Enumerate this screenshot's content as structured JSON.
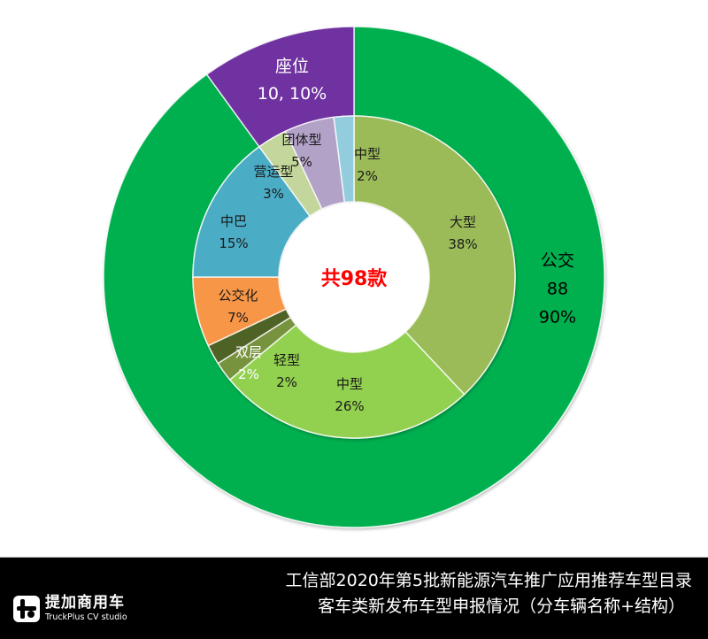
{
  "chart_data": {
    "type": "pie",
    "subtype": "nested-donut",
    "title": "工信部2020年第5批新能源汽车推广应用推荐车型目录 客车类新发布车型申报情况（分车辆名称+结构）",
    "center_label": "共98款",
    "total": 98,
    "outer_ring": {
      "name": "车辆名称",
      "categories": [
        "公交",
        "座位"
      ],
      "counts": [
        88,
        10
      ],
      "percents": [
        90,
        10
      ],
      "colors": [
        "#00B050",
        "#7030A0"
      ],
      "labels": [
        "公交\n88\n90%",
        "座位\n10, 10%"
      ]
    },
    "inner_ring": {
      "name": "结构",
      "categories": [
        "大型",
        "中型",
        "轻型",
        "双层",
        "公交化",
        "中巴",
        "营运型",
        "团体型",
        "中型"
      ],
      "percents": [
        38,
        26,
        2,
        2,
        7,
        15,
        3,
        5,
        2
      ],
      "colors": [
        "#9BBB59",
        "#92D050",
        "#77933C",
        "#4F6228",
        "#F79646",
        "#4BACC6",
        "#C3D69B",
        "#B3A2C7",
        "#93CDDD"
      ],
      "parent": [
        "公交",
        "公交",
        "公交",
        "公交",
        "公交",
        "公交",
        "座位",
        "座位",
        "座位"
      ]
    },
    "start_angle": "12 o'clock, clockwise",
    "legend": "none (data labels on slices)"
  },
  "labels": {
    "gongjiao": {
      "name": "公交",
      "count": "88",
      "pct": "90%"
    },
    "zuowei": {
      "name": "座位",
      "value": "10, 10%"
    },
    "daxing": {
      "name": "大型",
      "pct": "38%"
    },
    "zhongxing": {
      "name": "中型",
      "pct": "26%"
    },
    "qingxing": {
      "name": "轻型",
      "pct": "2%"
    },
    "shuangceng": {
      "name": "双层",
      "pct": "2%"
    },
    "gongjiaohua": {
      "name": "公交化",
      "pct": "7%"
    },
    "zhongba": {
      "name": "中巴",
      "pct": "15%"
    },
    "yingyun": {
      "name": "营运型",
      "pct": "3%"
    },
    "tuanti": {
      "name": "团体型",
      "pct": "5%"
    },
    "zhongxing2": {
      "name": "中型",
      "pct": "2%"
    }
  },
  "footer": {
    "logo_cn": "提加商用车",
    "logo_en": "TruckPlus CV studio",
    "title_line1": "工信部2020年第5批新能源汽车推广应用推荐车型目录",
    "title_line2": "客车类新发布车型申报情况（分车辆名称+结构）"
  }
}
